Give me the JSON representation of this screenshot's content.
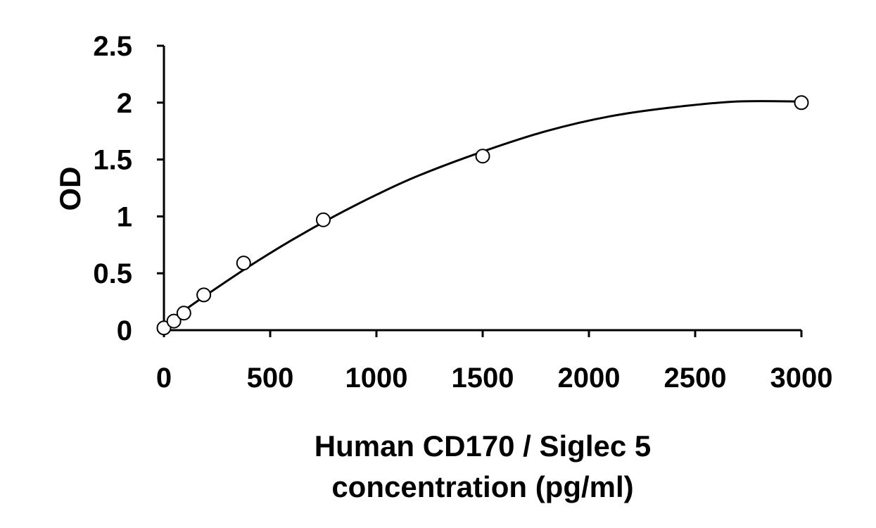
{
  "chart_data": {
    "type": "scatter",
    "title": "",
    "xlabel_lines": [
      "Human CD170 / Siglec 5",
      "concentration (pg/ml)"
    ],
    "ylabel": "OD",
    "xlim": [
      0,
      3000
    ],
    "ylim": [
      0,
      2.5
    ],
    "xticks": [
      0,
      500,
      1000,
      1500,
      2000,
      2500,
      3000
    ],
    "yticks": [
      0,
      0.5,
      1,
      1.5,
      2,
      2.5
    ],
    "ytick_labels": [
      "0",
      "0.5",
      "1",
      "1.5",
      "2",
      "2.5"
    ],
    "grid": false,
    "legend": "none",
    "series": [
      {
        "marker": "open-circle",
        "x": [
          0,
          46.9,
          93.8,
          187.5,
          375,
          750,
          1500,
          3000
        ],
        "y": [
          0.02,
          0.08,
          0.15,
          0.31,
          0.59,
          0.97,
          1.53,
          2.0
        ]
      }
    ],
    "fit_curve": {
      "style": "solid",
      "x": [
        0,
        100,
        200,
        400,
        600,
        800,
        1000,
        1200,
        1500,
        1800,
        2100,
        2400,
        2700,
        3000
      ],
      "y": [
        0.05,
        0.18,
        0.31,
        0.56,
        0.79,
        1.0,
        1.19,
        1.36,
        1.57,
        1.75,
        1.88,
        1.96,
        2.01,
        2.01
      ]
    },
    "colors": {
      "marks": "#000000",
      "background": "#ffffff"
    }
  }
}
